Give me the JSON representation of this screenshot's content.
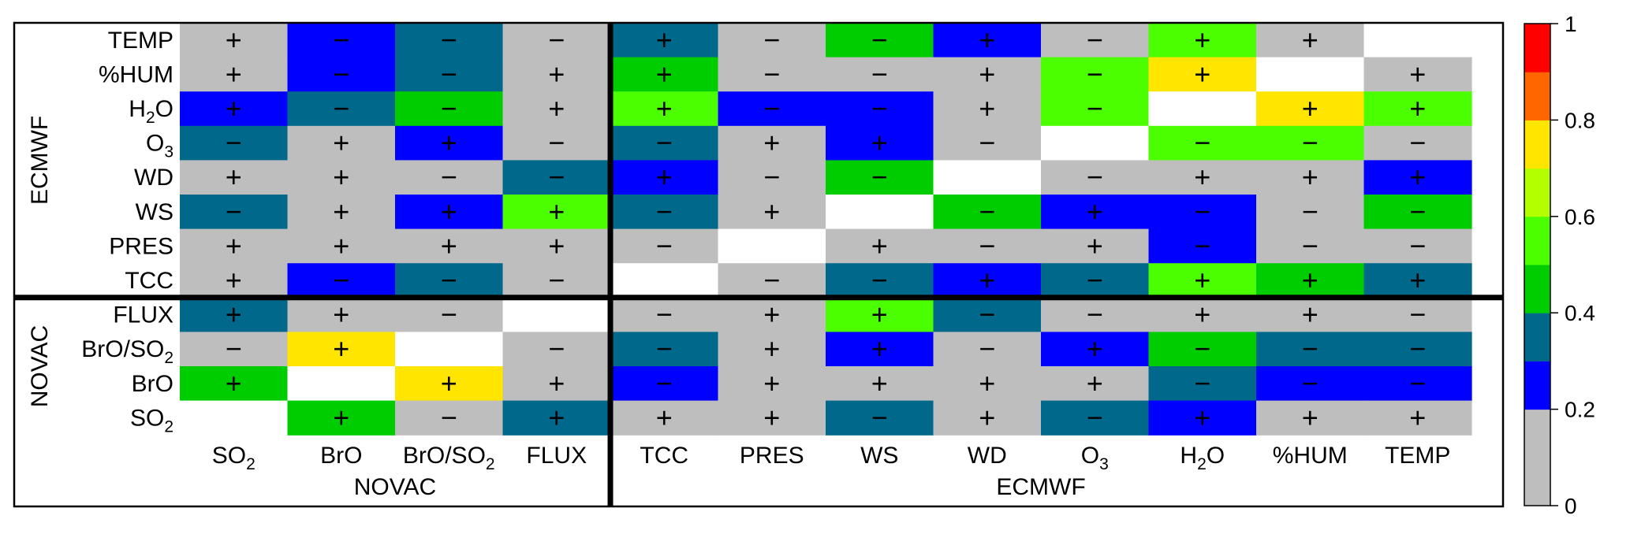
{
  "chart_data": {
    "type": "heatmap",
    "rows": [
      {
        "label": "TEMP",
        "sub": ""
      },
      {
        "label": "%HUM",
        "sub": ""
      },
      {
        "label": "H",
        "sub": "2",
        "suffix": "O"
      },
      {
        "label": "O",
        "sub": "3"
      },
      {
        "label": "WD",
        "sub": ""
      },
      {
        "label": "WS",
        "sub": ""
      },
      {
        "label": "PRES",
        "sub": ""
      },
      {
        "label": "TCC",
        "sub": ""
      },
      {
        "label": "FLUX",
        "sub": ""
      },
      {
        "label": "BrO/SO",
        "sub": "2"
      },
      {
        "label": "BrO",
        "sub": ""
      },
      {
        "label": "SO",
        "sub": "2"
      }
    ],
    "columns": [
      {
        "label": "SO",
        "sub": "2"
      },
      {
        "label": "BrO",
        "sub": ""
      },
      {
        "label": "BrO/SO",
        "sub": "2"
      },
      {
        "label": "FLUX",
        "sub": ""
      },
      {
        "label": "TCC",
        "sub": ""
      },
      {
        "label": "PRES",
        "sub": ""
      },
      {
        "label": "WS",
        "sub": ""
      },
      {
        "label": "WD",
        "sub": ""
      },
      {
        "label": "O",
        "sub": "3"
      },
      {
        "label": "H",
        "sub": "2",
        "suffix": "O"
      },
      {
        "label": "%HUM",
        "sub": ""
      },
      {
        "label": "TEMP",
        "sub": ""
      }
    ],
    "row_groups": [
      {
        "label": "ECMWF",
        "rows": [
          0,
          7
        ]
      },
      {
        "label": "NOVAC",
        "rows": [
          8,
          11
        ]
      }
    ],
    "column_groups": [
      {
        "label": "NOVAC",
        "cols": [
          0,
          3
        ]
      },
      {
        "label": "ECMWF",
        "cols": [
          4,
          11
        ]
      }
    ],
    "values": [
      [
        0.1,
        0.25,
        0.35,
        0.1,
        0.35,
        0.1,
        0.45,
        0.25,
        0.1,
        0.55,
        0.1,
        null
      ],
      [
        0.1,
        0.25,
        0.35,
        0.1,
        0.45,
        0.1,
        0.1,
        0.1,
        0.55,
        0.75,
        null,
        0.1
      ],
      [
        0.25,
        0.35,
        0.45,
        0.1,
        0.55,
        0.25,
        0.25,
        0.1,
        0.55,
        null,
        0.75,
        0.55
      ],
      [
        0.35,
        0.1,
        0.25,
        0.1,
        0.35,
        0.1,
        0.25,
        0.1,
        null,
        0.55,
        0.55,
        0.1
      ],
      [
        0.1,
        0.1,
        0.1,
        0.35,
        0.25,
        0.1,
        0.45,
        null,
        0.1,
        0.1,
        0.1,
        0.25
      ],
      [
        0.35,
        0.1,
        0.25,
        0.55,
        0.35,
        0.1,
        null,
        0.45,
        0.25,
        0.25,
        0.1,
        0.45
      ],
      [
        0.1,
        0.1,
        0.1,
        0.1,
        0.1,
        null,
        0.1,
        0.1,
        0.1,
        0.25,
        0.1,
        0.1
      ],
      [
        0.1,
        0.25,
        0.35,
        0.1,
        null,
        0.1,
        0.35,
        0.25,
        0.35,
        0.55,
        0.45,
        0.35
      ],
      [
        0.35,
        0.1,
        0.1,
        null,
        0.1,
        0.1,
        0.55,
        0.35,
        0.1,
        0.1,
        0.1,
        0.1
      ],
      [
        0.1,
        0.75,
        null,
        0.1,
        0.35,
        0.1,
        0.25,
        0.1,
        0.25,
        0.45,
        0.35,
        0.35
      ],
      [
        0.45,
        null,
        0.75,
        0.1,
        0.25,
        0.1,
        0.1,
        0.1,
        0.1,
        0.35,
        0.25,
        0.25
      ],
      [
        null,
        0.45,
        0.1,
        0.35,
        0.1,
        0.1,
        0.35,
        0.1,
        0.35,
        0.25,
        0.1,
        0.1
      ]
    ],
    "signs": [
      [
        "+",
        "−",
        "−",
        "−",
        "+",
        "−",
        "−",
        "+",
        "−",
        "+",
        "+",
        ""
      ],
      [
        "+",
        "−",
        "−",
        "+",
        "+",
        "−",
        "−",
        "+",
        "−",
        "+",
        "",
        "+"
      ],
      [
        "+",
        "−",
        "−",
        "+",
        "+",
        "−",
        "−",
        "+",
        "−",
        "",
        "+",
        "+"
      ],
      [
        "−",
        "+",
        "+",
        "−",
        "−",
        "+",
        "+",
        "−",
        "",
        "−",
        "−",
        "−"
      ],
      [
        "+",
        "+",
        "−",
        "−",
        "+",
        "−",
        "−",
        "",
        "−",
        "+",
        "+",
        "+"
      ],
      [
        "−",
        "+",
        "+",
        "+",
        "−",
        "+",
        "",
        "−",
        "+",
        "−",
        "−",
        "−"
      ],
      [
        "+",
        "+",
        "+",
        "+",
        "−",
        "",
        "+",
        "−",
        "+",
        "−",
        "−",
        "−"
      ],
      [
        "+",
        "−",
        "−",
        "−",
        "",
        "−",
        "−",
        "+",
        "−",
        "+",
        "+",
        "+"
      ],
      [
        "+",
        "+",
        "−",
        "",
        "−",
        "+",
        "+",
        "−",
        "−",
        "+",
        "+",
        "−"
      ],
      [
        "−",
        "+",
        "",
        "−",
        "−",
        "+",
        "+",
        "−",
        "+",
        "−",
        "−",
        "−"
      ],
      [
        "+",
        "",
        "+",
        "+",
        "−",
        "+",
        "+",
        "+",
        "+",
        "−",
        "−",
        "−"
      ],
      [
        "",
        "+",
        "−",
        "+",
        "+",
        "+",
        "−",
        "+",
        "−",
        "+",
        "+",
        "+"
      ]
    ],
    "colorbar": {
      "min": 0,
      "max": 1,
      "ticks": [
        "0",
        "0.2",
        "0.4",
        "0.6",
        "0.8",
        "1"
      ],
      "bins": [
        {
          "range": [
            0.0,
            0.2
          ],
          "color": "#bebebe"
        },
        {
          "range": [
            0.2,
            0.3
          ],
          "color": "#0000ff"
        },
        {
          "range": [
            0.3,
            0.4
          ],
          "color": "#00688b"
        },
        {
          "range": [
            0.4,
            0.5
          ],
          "color": "#00cd00"
        },
        {
          "range": [
            0.5,
            0.6
          ],
          "color": "#4cff00"
        },
        {
          "range": [
            0.6,
            0.7
          ],
          "color": "#b3ff00"
        },
        {
          "range": [
            0.7,
            0.8
          ],
          "color": "#ffe500"
        },
        {
          "range": [
            0.8,
            0.9
          ],
          "color": "#ff6600"
        },
        {
          "range": [
            0.9,
            1.0
          ],
          "color": "#ff0000"
        }
      ]
    },
    "diagonal_color": "#ffffff",
    "grid": false,
    "legend": "right"
  }
}
